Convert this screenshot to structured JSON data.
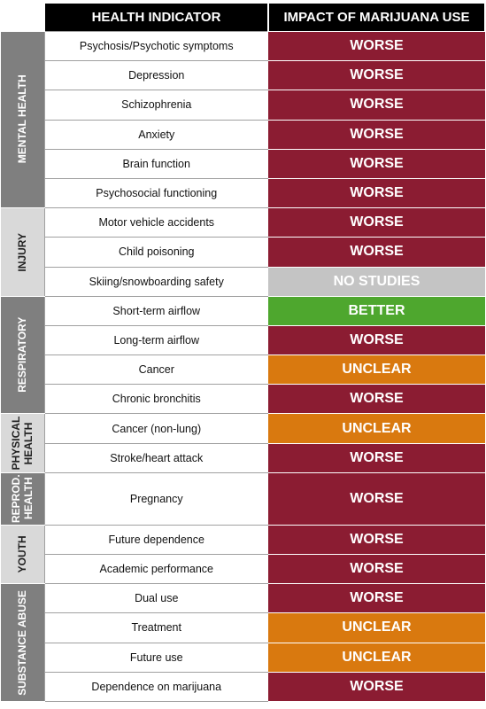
{
  "header": {
    "indicator": "HEALTH INDICATOR",
    "impact": "IMPACT OF MARIJUANA USE"
  },
  "impact_colors": {
    "WORSE": "#8b1c32",
    "UNCLEAR": "#d9790f",
    "BETTER": "#4ea72e",
    "NO STUDIES": "#c4c4c4"
  },
  "groups": [
    {
      "label": "MENTAL HEALTH",
      "shade": "#7f7f7f",
      "rows": [
        {
          "indicator": "Psychosis/Psychotic symptoms",
          "impact": "WORSE"
        },
        {
          "indicator": "Depression",
          "impact": "WORSE"
        },
        {
          "indicator": "Schizophrenia",
          "impact": "WORSE"
        },
        {
          "indicator": "Anxiety",
          "impact": "WORSE"
        },
        {
          "indicator": "Brain function",
          "impact": "WORSE"
        },
        {
          "indicator": "Psychosocial functioning",
          "impact": "WORSE"
        }
      ]
    },
    {
      "label": "INJURY",
      "shade": "#d9d9d9",
      "rows": [
        {
          "indicator": "Motor vehicle accidents",
          "impact": "WORSE"
        },
        {
          "indicator": "Child poisoning",
          "impact": "WORSE"
        },
        {
          "indicator": "Skiing/snowboarding safety",
          "impact": "NO STUDIES"
        }
      ]
    },
    {
      "label": "RESPIRATORY",
      "shade": "#7f7f7f",
      "rows": [
        {
          "indicator": "Short-term airflow",
          "impact": "BETTER"
        },
        {
          "indicator": "Long-term airflow",
          "impact": "WORSE"
        },
        {
          "indicator": "Cancer",
          "impact": "UNCLEAR"
        },
        {
          "indicator": "Chronic bronchitis",
          "impact": "WORSE"
        }
      ]
    },
    {
      "label": "PHYSICAL HEALTH",
      "shade": "#d9d9d9",
      "rows": [
        {
          "indicator": "Cancer (non-lung)",
          "impact": "UNCLEAR"
        },
        {
          "indicator": "Stroke/heart attack",
          "impact": "WORSE"
        }
      ]
    },
    {
      "label": "REPROD. HEALTH",
      "shade": "#7f7f7f",
      "rows": [
        {
          "indicator": "Pregnancy",
          "impact": "WORSE"
        }
      ]
    },
    {
      "label": "YOUTH",
      "shade": "#d9d9d9",
      "rows": [
        {
          "indicator": "Future dependence",
          "impact": "WORSE"
        },
        {
          "indicator": "Academic performance",
          "impact": "WORSE"
        }
      ]
    },
    {
      "label": "SUBSTANCE ABUSE",
      "shade": "#7f7f7f",
      "rows": [
        {
          "indicator": "Dual use",
          "impact": "WORSE"
        },
        {
          "indicator": "Treatment",
          "impact": "UNCLEAR"
        },
        {
          "indicator": "Future use",
          "impact": "UNCLEAR"
        },
        {
          "indicator": "Dependence on marijuana",
          "impact": "WORSE"
        }
      ]
    }
  ]
}
